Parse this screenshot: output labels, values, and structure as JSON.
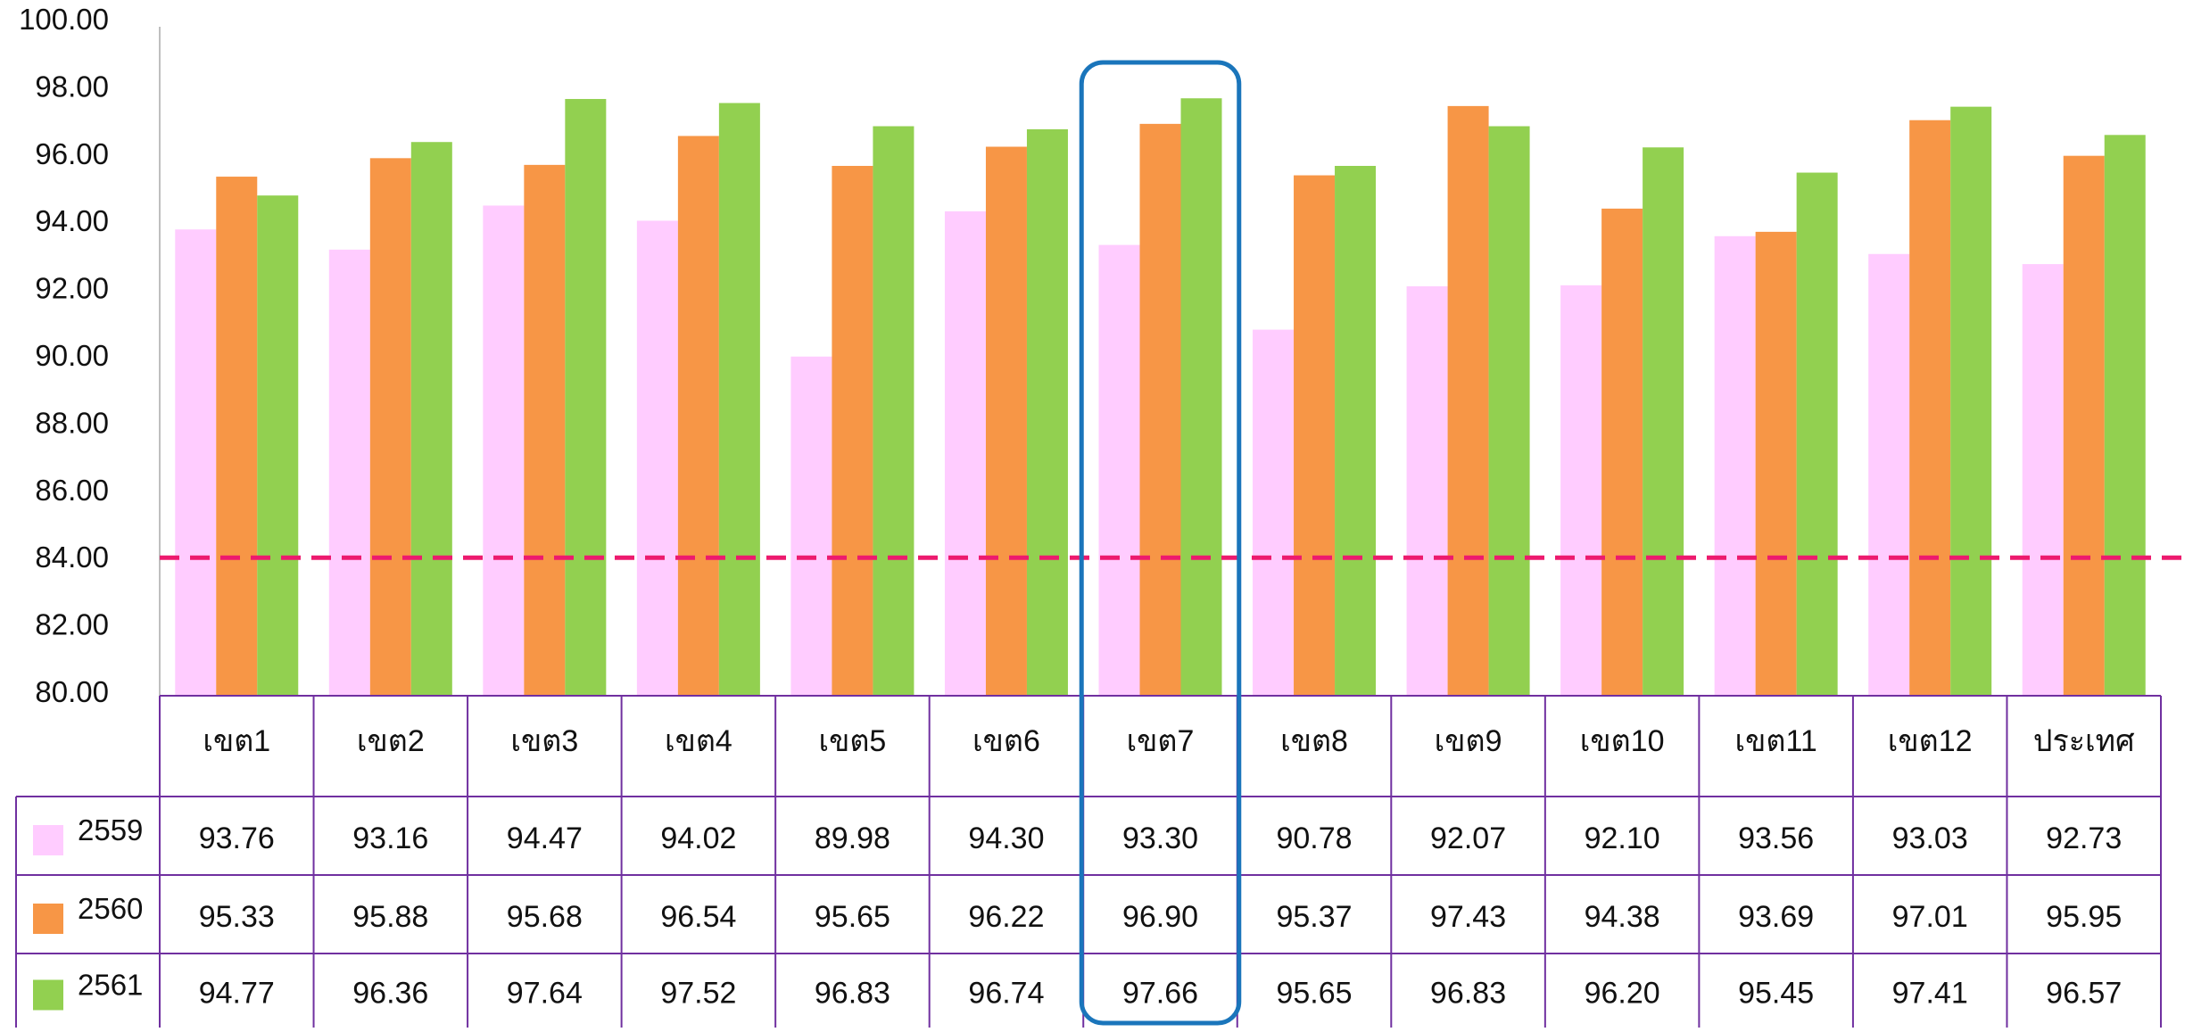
{
  "chart_data": {
    "type": "bar",
    "categories": [
      "เขต1",
      "เขต2",
      "เขต3",
      "เขต4",
      "เขต5",
      "เขต6",
      "เขต7",
      "เขต8",
      "เขต9",
      "เขต10",
      "เขต11",
      "เขต12",
      "ประเทศ"
    ],
    "series": [
      {
        "name": "2559",
        "color": "#ffccff",
        "values": [
          93.76,
          93.16,
          94.47,
          94.02,
          89.98,
          94.3,
          93.3,
          90.78,
          92.07,
          92.1,
          93.56,
          93.03,
          92.73
        ]
      },
      {
        "name": "2560",
        "color": "#f79646",
        "values": [
          95.33,
          95.88,
          95.68,
          96.54,
          95.65,
          96.22,
          96.9,
          95.37,
          97.43,
          94.38,
          93.69,
          97.01,
          95.95
        ]
      },
      {
        "name": "2561",
        "color": "#92d050",
        "values": [
          94.77,
          96.36,
          97.64,
          97.52,
          96.83,
          96.74,
          97.66,
          95.65,
          96.83,
          96.2,
          95.45,
          97.41,
          96.57
        ]
      }
    ],
    "ylim": [
      80,
      100
    ],
    "yticks": [
      "80.00",
      "82.00",
      "84.00",
      "86.00",
      "88.00",
      "90.00",
      "92.00",
      "94.00",
      "96.00",
      "98.00",
      "100.00"
    ],
    "reference_line": {
      "value": 84,
      "color": "#ed1a6e",
      "style": "dashed"
    },
    "highlight": {
      "category": "เขต7",
      "color": "#1a75bb"
    },
    "data_table": {
      "rows": [
        [
          "93.76",
          "93.16",
          "94.47",
          "94.02",
          "89.98",
          "94.30",
          "93.30",
          "90.78",
          "92.07",
          "92.10",
          "93.56",
          "93.03",
          "92.73"
        ],
        [
          "95.33",
          "95.88",
          "95.68",
          "96.54",
          "95.65",
          "96.22",
          "96.90",
          "95.37",
          "97.43",
          "94.38",
          "93.69",
          "97.01",
          "95.95"
        ],
        [
          "94.77",
          "96.36",
          "97.64",
          "97.52",
          "96.83",
          "96.74",
          "97.66",
          "95.65",
          "96.83",
          "96.20",
          "95.45",
          "97.41",
          "96.57"
        ]
      ],
      "border_color": "#7030a0"
    }
  }
}
